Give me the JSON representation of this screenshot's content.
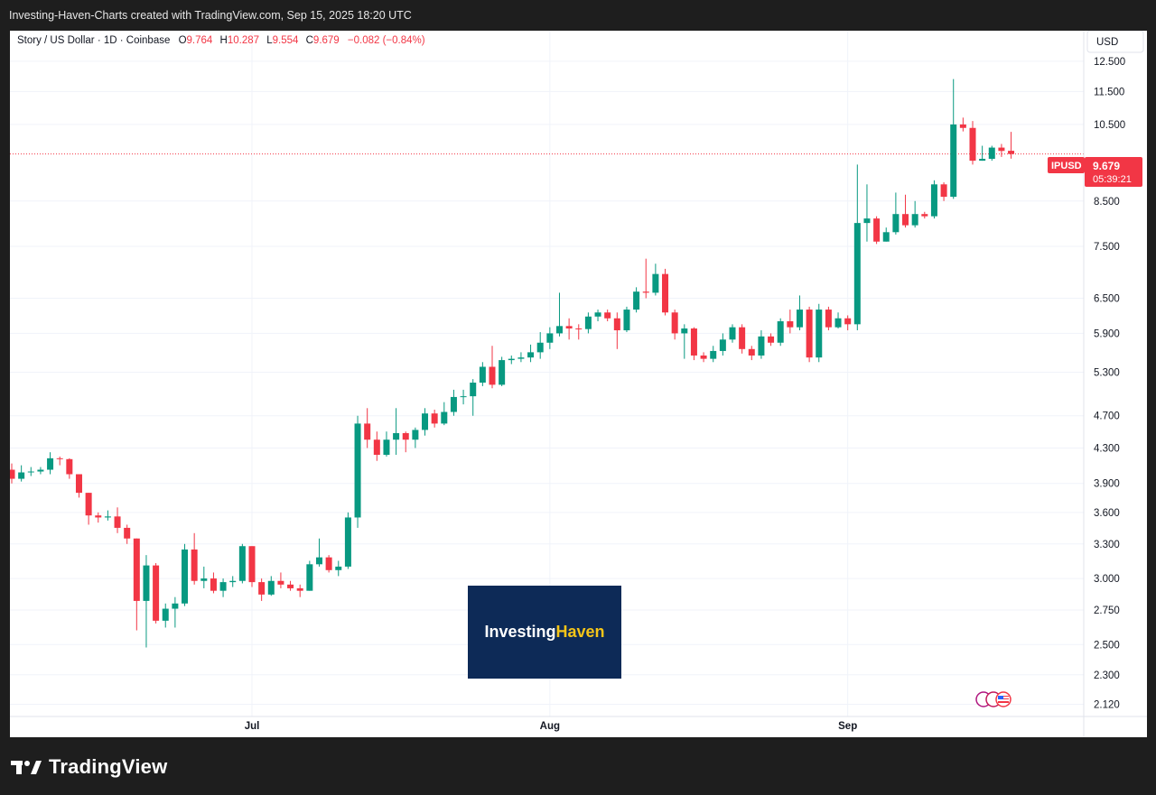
{
  "header": {
    "title": "Investing-Haven-Charts created with TradingView.com, Sep 15, 2025 18:20 UTC"
  },
  "legend": {
    "symbol": "Story / US Dollar · 1D · Coinbase",
    "o_label": "O",
    "o_value": "9.764",
    "h_label": "H",
    "h_value": "10.287",
    "l_label": "L",
    "l_value": "9.554",
    "c_label": "C",
    "c_value": "9.679",
    "change": "−0.082 (−0.84%)"
  },
  "currency_button": "USD",
  "price_tag": {
    "symbol": "IPUSD",
    "price": "9.679",
    "countdown": "05:39:21"
  },
  "watermark": {
    "part1": "Investing",
    "part2": "Haven"
  },
  "footer": {
    "brand": "TradingView"
  },
  "colors": {
    "up": "#089981",
    "down": "#f23645",
    "watermark_bg": "#0d2a57",
    "watermark_accent": "#f5c518"
  },
  "chart_data": {
    "type": "candlestick",
    "y_scale": "log",
    "ylim": [
      2.05,
      13.6
    ],
    "y_ticks": [
      "12.500",
      "11.500",
      "10.500",
      "8.500",
      "7.500",
      "6.500",
      "5.900",
      "5.300",
      "4.700",
      "4.300",
      "3.900",
      "3.600",
      "3.300",
      "3.000",
      "2.750",
      "2.500",
      "2.300",
      "2.120"
    ],
    "x_ticks": [
      {
        "label": "Jul",
        "index": 25
      },
      {
        "label": "Aug",
        "index": 56
      },
      {
        "label": "Sep",
        "index": 87
      }
    ],
    "last_price": 9.679,
    "candles": [
      [
        4.05,
        3.95,
        4.12,
        3.9
      ],
      [
        3.95,
        4.02,
        4.1,
        3.92
      ],
      [
        4.02,
        4.03,
        4.08,
        3.98
      ],
      [
        4.03,
        4.05,
        4.08,
        4.0
      ],
      [
        4.05,
        4.18,
        4.25,
        4.0
      ],
      [
        4.18,
        4.17,
        4.2,
        4.1
      ],
      [
        4.17,
        4.0,
        4.18,
        3.95
      ],
      [
        4.0,
        3.8,
        4.0,
        3.75
      ],
      [
        3.8,
        3.57,
        3.8,
        3.48
      ],
      [
        3.57,
        3.55,
        3.6,
        3.5
      ],
      [
        3.55,
        3.56,
        3.62,
        3.52
      ],
      [
        3.56,
        3.45,
        3.65,
        3.4
      ],
      [
        3.45,
        3.35,
        3.48,
        3.3
      ],
      [
        3.35,
        2.82,
        3.35,
        2.6
      ],
      [
        2.82,
        3.11,
        3.2,
        2.48
      ],
      [
        3.11,
        2.67,
        3.13,
        2.65
      ],
      [
        2.67,
        2.76,
        2.8,
        2.62
      ],
      [
        2.76,
        2.8,
        2.85,
        2.62
      ],
      [
        2.8,
        3.25,
        3.3,
        2.78
      ],
      [
        3.25,
        2.98,
        3.4,
        2.95
      ],
      [
        2.98,
        3.0,
        3.1,
        2.92
      ],
      [
        3.0,
        2.9,
        3.05,
        2.88
      ],
      [
        2.9,
        2.97,
        3.0,
        2.85
      ],
      [
        2.97,
        2.98,
        3.02,
        2.93
      ],
      [
        2.98,
        3.28,
        3.3,
        2.96
      ],
      [
        3.28,
        2.97,
        3.28,
        2.93
      ],
      [
        2.97,
        2.87,
        3.0,
        2.82
      ],
      [
        2.87,
        2.98,
        3.02,
        2.86
      ],
      [
        2.98,
        2.95,
        3.05,
        2.92
      ],
      [
        2.95,
        2.92,
        2.98,
        2.9
      ],
      [
        2.92,
        2.9,
        2.95,
        2.85
      ],
      [
        2.9,
        3.12,
        3.15,
        2.9
      ],
      [
        3.12,
        3.18,
        3.35,
        3.1
      ],
      [
        3.18,
        3.07,
        3.2,
        3.05
      ],
      [
        3.07,
        3.1,
        3.15,
        3.02
      ],
      [
        3.1,
        3.55,
        3.6,
        3.08
      ],
      [
        3.55,
        4.6,
        4.7,
        3.45
      ],
      [
        4.6,
        4.4,
        4.8,
        4.3
      ],
      [
        4.4,
        4.22,
        4.5,
        4.15
      ],
      [
        4.22,
        4.4,
        4.5,
        4.2
      ],
      [
        4.4,
        4.48,
        4.8,
        4.22
      ],
      [
        4.48,
        4.4,
        4.5,
        4.25
      ],
      [
        4.4,
        4.52,
        4.55,
        4.3
      ],
      [
        4.52,
        4.73,
        4.8,
        4.45
      ],
      [
        4.73,
        4.6,
        4.78,
        4.55
      ],
      [
        4.6,
        4.75,
        4.88,
        4.58
      ],
      [
        4.75,
        4.95,
        5.05,
        4.7
      ],
      [
        4.95,
        4.96,
        5.05,
        4.85
      ],
      [
        4.96,
        5.15,
        5.2,
        4.7
      ],
      [
        5.15,
        5.38,
        5.45,
        5.1
      ],
      [
        5.38,
        5.12,
        5.7,
        5.07
      ],
      [
        5.12,
        5.48,
        5.53,
        5.1
      ],
      [
        5.48,
        5.5,
        5.55,
        5.42
      ],
      [
        5.5,
        5.52,
        5.6,
        5.45
      ],
      [
        5.52,
        5.6,
        5.72,
        5.45
      ],
      [
        5.6,
        5.75,
        5.92,
        5.5
      ],
      [
        5.75,
        5.9,
        6.0,
        5.65
      ],
      [
        5.9,
        6.02,
        6.6,
        5.85
      ],
      [
        6.02,
        5.98,
        6.15,
        5.8
      ],
      [
        5.98,
        5.97,
        6.05,
        5.8
      ],
      [
        5.97,
        6.18,
        6.25,
        5.9
      ],
      [
        6.18,
        6.25,
        6.3,
        6.1
      ],
      [
        6.25,
        6.15,
        6.3,
        6.1
      ],
      [
        6.15,
        5.95,
        6.25,
        5.65
      ],
      [
        5.95,
        6.3,
        6.35,
        5.92
      ],
      [
        6.3,
        6.62,
        6.7,
        6.25
      ],
      [
        6.62,
        6.6,
        7.25,
        6.5
      ],
      [
        6.6,
        6.95,
        7.15,
        6.55
      ],
      [
        6.95,
        6.25,
        7.05,
        6.2
      ],
      [
        6.25,
        5.9,
        6.3,
        5.8
      ],
      [
        5.9,
        5.98,
        6.05,
        5.5
      ],
      [
        5.98,
        5.55,
        6.0,
        5.48
      ],
      [
        5.55,
        5.5,
        5.6,
        5.45
      ],
      [
        5.5,
        5.62,
        5.7,
        5.45
      ],
      [
        5.62,
        5.8,
        5.9,
        5.55
      ],
      [
        5.8,
        6.0,
        6.05,
        5.75
      ],
      [
        6.0,
        5.65,
        6.05,
        5.58
      ],
      [
        5.65,
        5.55,
        5.7,
        5.48
      ],
      [
        5.55,
        5.85,
        5.95,
        5.5
      ],
      [
        5.85,
        5.75,
        5.9,
        5.7
      ],
      [
        5.75,
        6.1,
        6.15,
        5.7
      ],
      [
        6.1,
        6.0,
        6.3,
        5.9
      ],
      [
        6.0,
        6.3,
        6.55,
        5.95
      ],
      [
        6.3,
        5.52,
        6.35,
        5.45
      ],
      [
        5.52,
        6.3,
        6.4,
        5.45
      ],
      [
        6.3,
        6.0,
        6.35,
        5.95
      ],
      [
        6.0,
        6.15,
        6.25,
        5.98
      ],
      [
        6.15,
        6.05,
        6.2,
        5.95
      ],
      [
        6.05,
        8.0,
        9.4,
        5.95
      ],
      [
        8.0,
        8.1,
        8.9,
        7.6
      ],
      [
        8.1,
        7.6,
        8.15,
        7.55
      ],
      [
        7.6,
        7.8,
        7.9,
        7.6
      ],
      [
        7.8,
        8.2,
        8.7,
        7.75
      ],
      [
        8.2,
        7.95,
        8.65,
        7.9
      ],
      [
        7.95,
        8.2,
        8.5,
        7.9
      ],
      [
        8.2,
        8.15,
        8.25,
        8.1
      ],
      [
        8.15,
        8.9,
        9.0,
        8.1
      ],
      [
        8.9,
        8.6,
        8.95,
        8.5
      ],
      [
        8.6,
        10.5,
        11.9,
        8.55
      ],
      [
        10.5,
        10.4,
        10.7,
        10.3
      ],
      [
        10.4,
        9.5,
        10.6,
        9.4
      ],
      [
        9.5,
        9.55,
        9.9,
        9.5
      ],
      [
        9.55,
        9.85,
        9.9,
        9.5
      ],
      [
        9.85,
        9.76,
        9.95,
        9.6
      ],
      [
        9.764,
        9.679,
        10.287,
        9.554
      ]
    ]
  }
}
